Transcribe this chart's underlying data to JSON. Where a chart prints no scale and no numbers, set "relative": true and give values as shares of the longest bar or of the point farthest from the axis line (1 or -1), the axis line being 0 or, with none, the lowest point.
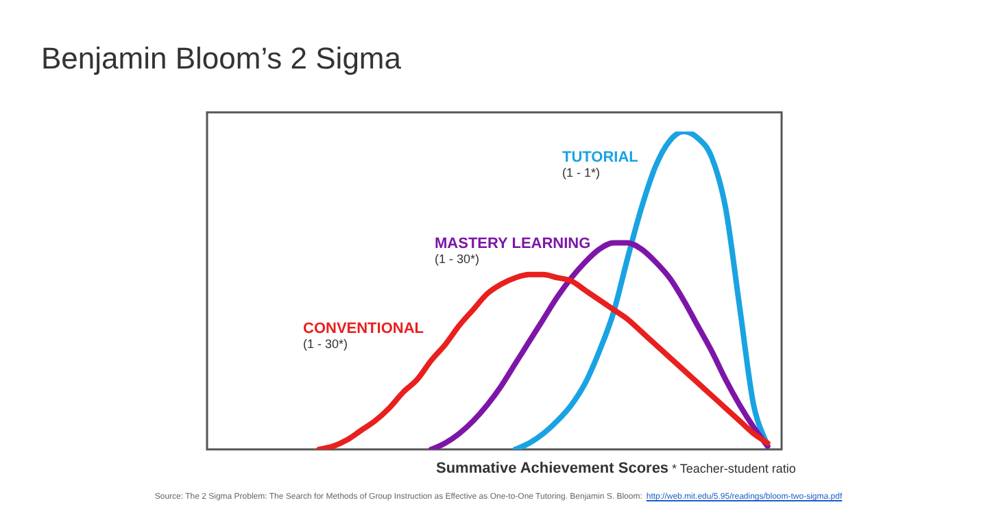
{
  "chart_data": {
    "type": "line",
    "title": "Benjamin Bloom’s 2 Sigma",
    "xlabel": "Summative Achievement Scores",
    "relative": true,
    "marker": "none",
    "categories": [
      null,
      null,
      null,
      null,
      null,
      null,
      null,
      null,
      null,
      null,
      null,
      null,
      null,
      null,
      null,
      null,
      null,
      null,
      null,
      null,
      null,
      null,
      null,
      null,
      null,
      null,
      null,
      null,
      null,
      null,
      null,
      null,
      null,
      null,
      null,
      null,
      null,
      null,
      null,
      null,
      null,
      null
    ],
    "series": [
      {
        "name": "CONVENTIONAL",
        "color": "#e8201e",
        "values": [
          null,
          null,
          null,
          null,
          null,
          null,
          null,
          null,
          0,
          0.01,
          0.03,
          0.06,
          0.09,
          0.13,
          0.18,
          0.22,
          0.28,
          0.33,
          0.39,
          0.44,
          0.49,
          0.52,
          0.54,
          0.55,
          0.55,
          0.54,
          0.53,
          0.5,
          0.47,
          0.44,
          0.41,
          0.37,
          0.33,
          0.29,
          0.25,
          0.21,
          0.17,
          0.13,
          0.09,
          0.05,
          0.02,
          null
        ]
      },
      {
        "name": "MASTERY LEARNING",
        "color": "#7d16a8",
        "values": [
          null,
          null,
          null,
          null,
          null,
          null,
          null,
          null,
          null,
          null,
          null,
          null,
          null,
          null,
          null,
          null,
          0,
          0.02,
          0.05,
          0.09,
          0.14,
          0.2,
          0.27,
          0.34,
          0.41,
          0.48,
          0.54,
          0.59,
          0.63,
          0.65,
          0.65,
          0.63,
          0.59,
          0.54,
          0.47,
          0.39,
          0.31,
          0.22,
          0.14,
          0.07,
          0.01,
          null
        ]
      },
      {
        "name": "TUTORIAL",
        "color": "#1aa3e2",
        "values": [
          null,
          null,
          null,
          null,
          null,
          null,
          null,
          null,
          null,
          null,
          null,
          null,
          null,
          null,
          null,
          null,
          null,
          null,
          null,
          null,
          null,
          null,
          0,
          0.02,
          0.05,
          0.09,
          0.14,
          0.21,
          0.31,
          0.43,
          0.6,
          0.76,
          0.89,
          0.97,
          1,
          0.98,
          0.92,
          0.76,
          0.45,
          0.14,
          0.01,
          null
        ]
      }
    ],
    "annotations": [
      "(1 - 30*)",
      "(1 - 30*)",
      "(1 - 1*)",
      "* Teacher-student ratio",
      "Source: The 2 Sigma Problem: The Search for Methods of Group Instruction as Effective as One-to-One Tutoring. Benjamin S. Bloom:",
      "http://web.mit.edu/5.95/readings/bloom-two-sigma.pdf"
    ]
  }
}
